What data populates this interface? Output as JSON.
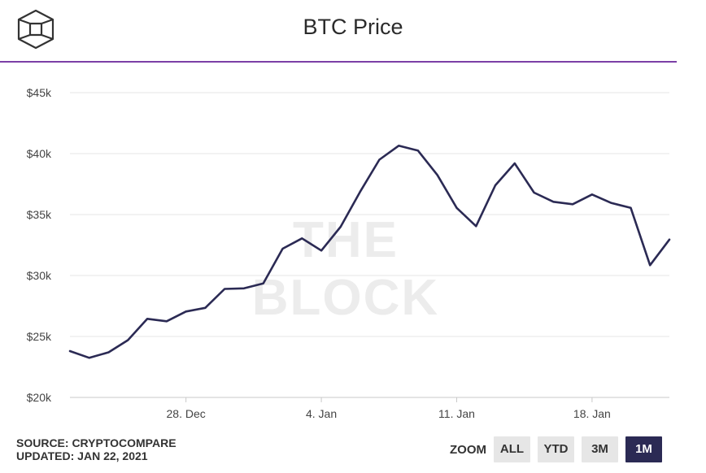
{
  "header": {
    "title": "BTC Price",
    "logo_icon": "the-block-cube-icon"
  },
  "watermark": "THE BLOCK",
  "colors": {
    "line": "#2b2a54",
    "divider": "#7b3fa6",
    "grid": "#e6e6e6",
    "active_button": "#2b2a54",
    "button": "#e6e6e6"
  },
  "footer": {
    "source": "SOURCE: CRYPTOCOMPARE",
    "updated": "UPDATED: JAN 22, 2021"
  },
  "zoom": {
    "label": "ZOOM",
    "buttons": [
      {
        "label": "ALL",
        "active": false
      },
      {
        "label": "YTD",
        "active": false
      },
      {
        "label": "3M",
        "active": false
      },
      {
        "label": "1M",
        "active": true
      }
    ]
  },
  "chart_data": {
    "type": "line",
    "title": "BTC Price",
    "xlabel": "",
    "ylabel": "",
    "ylim": [
      20000,
      45000
    ],
    "yticks": [
      {
        "value": 45000,
        "label": "$45k"
      },
      {
        "value": 40000,
        "label": "$40k"
      },
      {
        "value": 35000,
        "label": "$35k"
      },
      {
        "value": 30000,
        "label": "$30k"
      },
      {
        "value": 25000,
        "label": "$25k"
      },
      {
        "value": 20000,
        "label": "$20k"
      }
    ],
    "xlim": [
      "2020-12-22",
      "2021-01-22"
    ],
    "xticks": [
      {
        "date": "2020-12-28",
        "label": "28. Dec"
      },
      {
        "date": "2021-01-04",
        "label": "4. Jan"
      },
      {
        "date": "2021-01-11",
        "label": "11. Jan"
      },
      {
        "date": "2021-01-18",
        "label": "18. Jan"
      }
    ],
    "grid": true,
    "legend": "none",
    "series": [
      {
        "x": [
          "2020-12-22",
          "2020-12-23",
          "2020-12-24",
          "2020-12-25",
          "2020-12-26",
          "2020-12-27",
          "2020-12-28",
          "2020-12-29",
          "2020-12-30",
          "2020-12-31",
          "2021-01-01",
          "2021-01-02",
          "2021-01-03",
          "2021-01-04",
          "2021-01-05",
          "2021-01-06",
          "2021-01-07",
          "2021-01-08",
          "2021-01-09",
          "2021-01-10",
          "2021-01-11",
          "2021-01-12",
          "2021-01-13",
          "2021-01-14",
          "2021-01-15",
          "2021-01-16",
          "2021-01-17",
          "2021-01-18",
          "2021-01-19",
          "2021-01-20",
          "2021-01-21",
          "2021-01-22"
        ],
        "values": [
          23800,
          23250,
          23700,
          24700,
          26450,
          26250,
          27050,
          27350,
          28900,
          28950,
          29350,
          32200,
          33050,
          32050,
          34000,
          36850,
          39500,
          40650,
          40250,
          38250,
          35550,
          34050,
          37400,
          39200,
          36800,
          36050,
          35850,
          36650,
          35950,
          35550,
          30850,
          32950
        ]
      }
    ]
  }
}
